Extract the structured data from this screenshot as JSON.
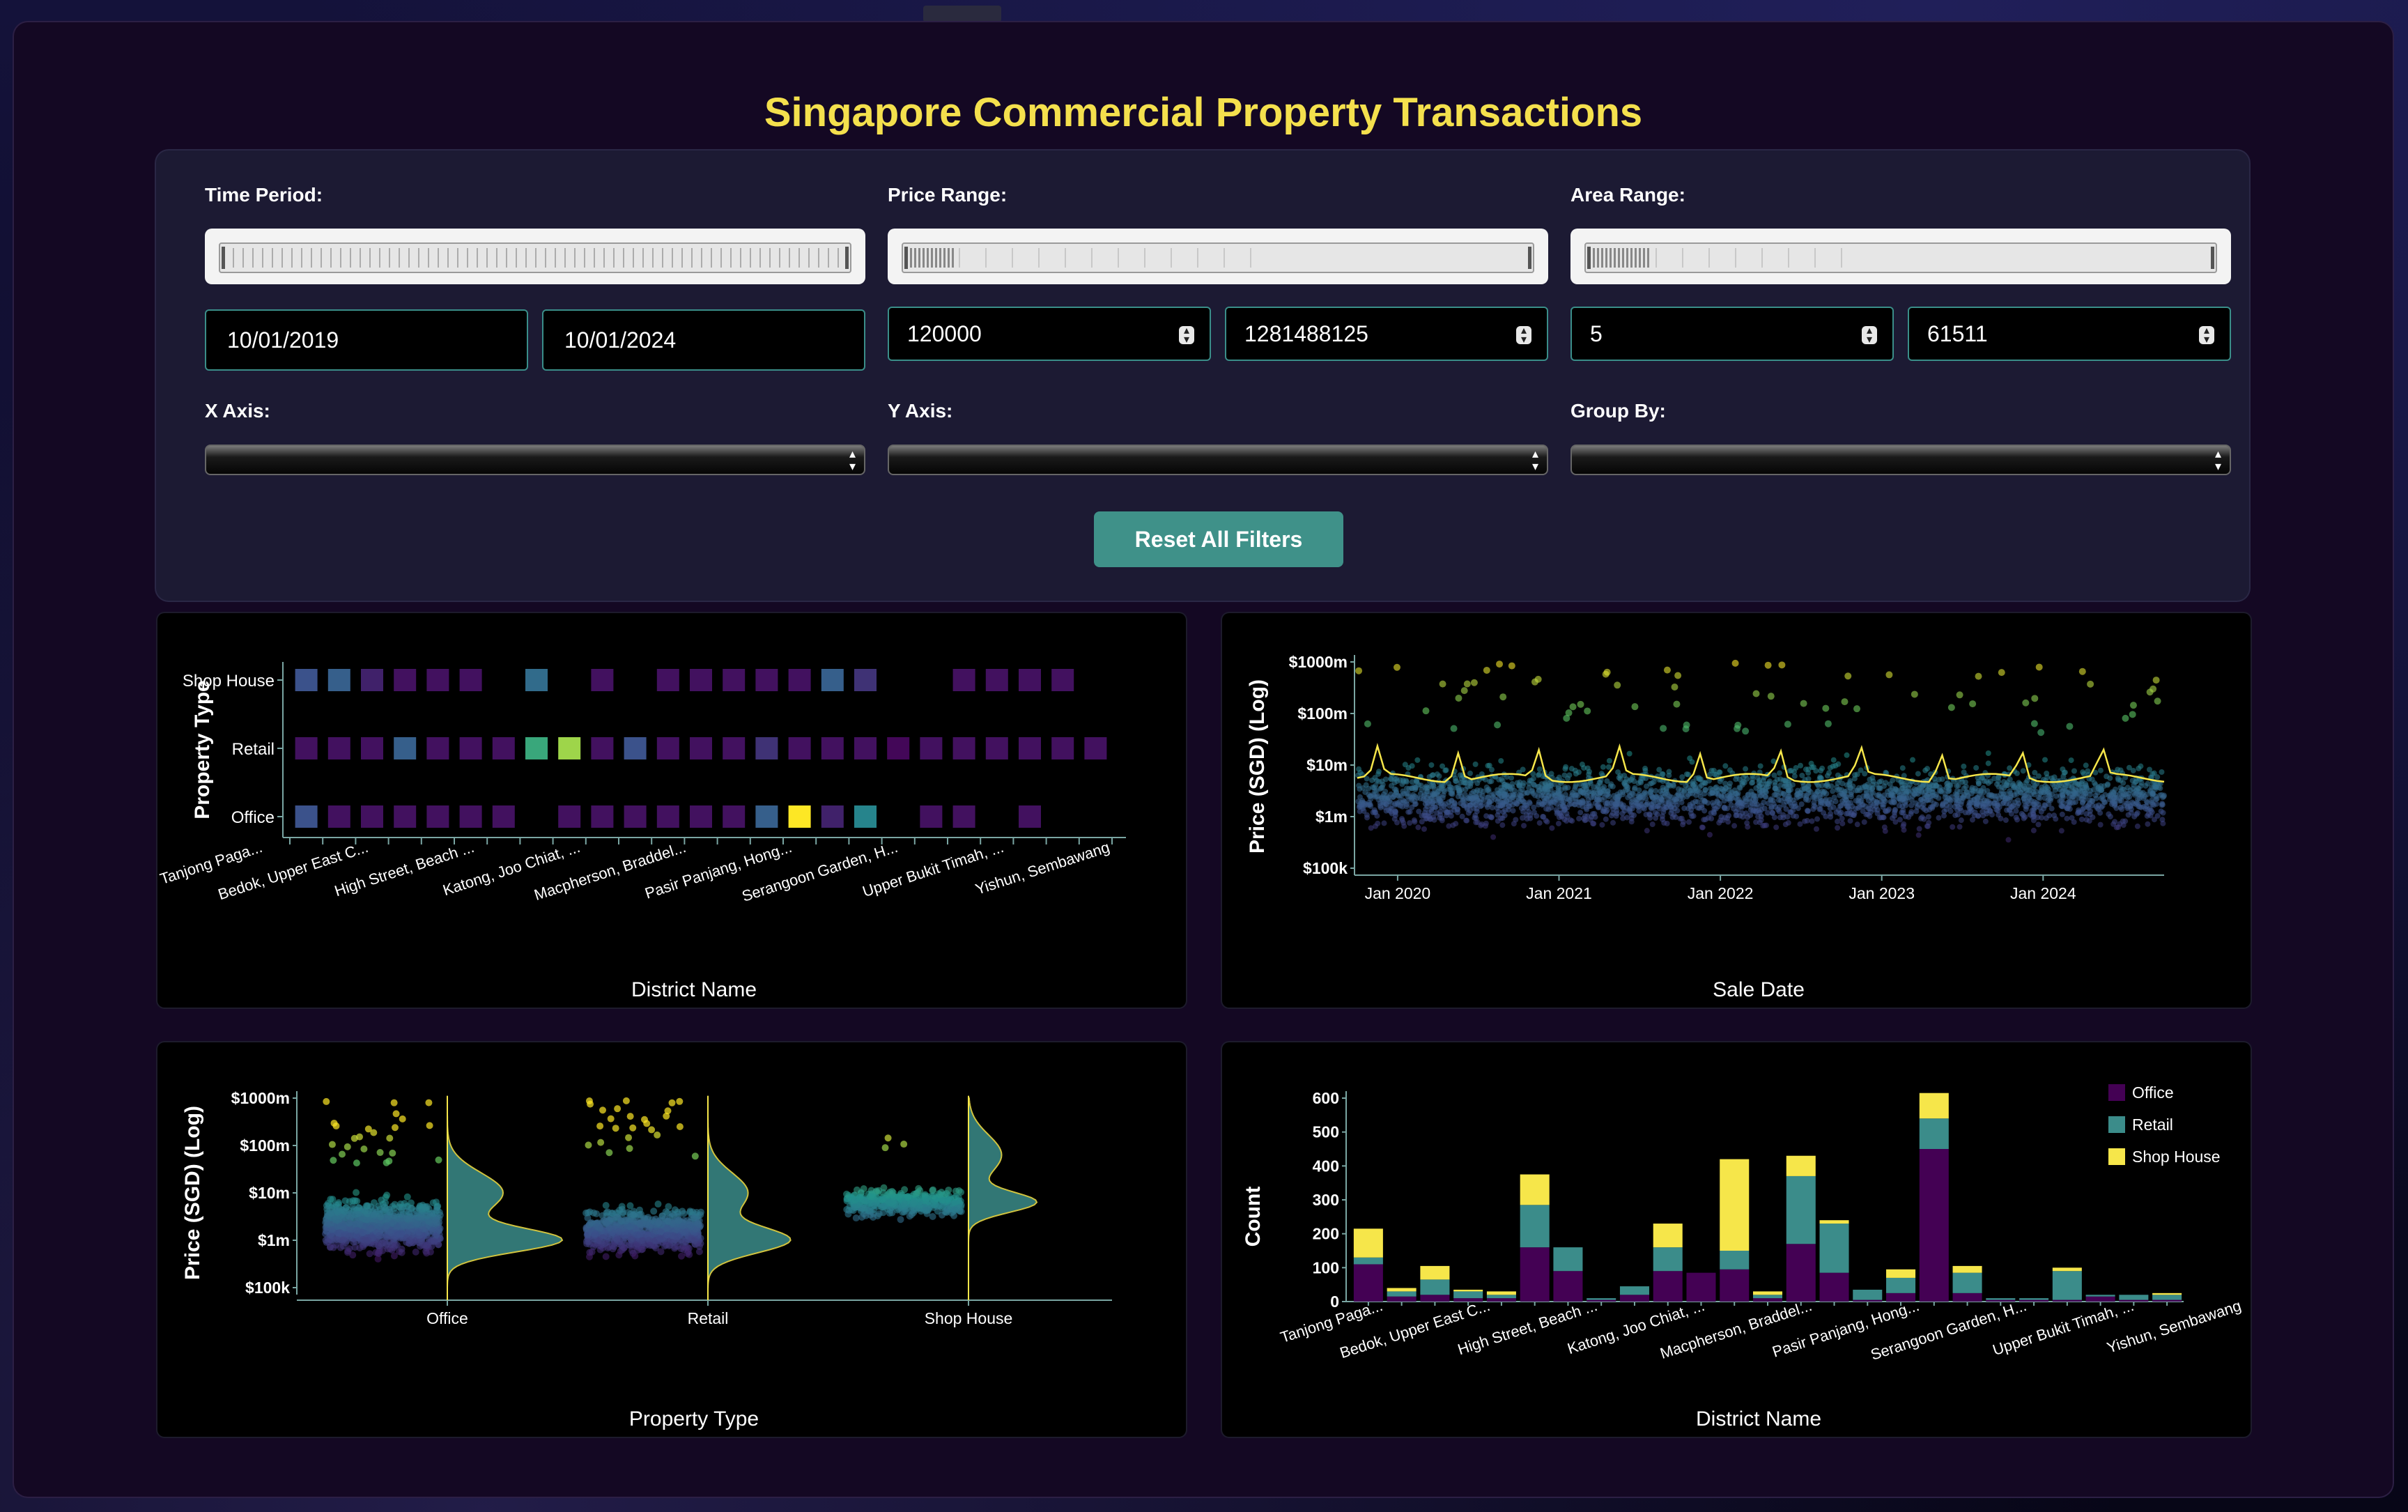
{
  "title": "Singapore Commercial Property Transactions",
  "filters": {
    "time_period": {
      "label": "Time Period:",
      "start": "10/01/2019",
      "end": "10/01/2024"
    },
    "price_range": {
      "label": "Price Range:",
      "min": "120000",
      "max": "1281488125"
    },
    "area_range": {
      "label": "Area Range:",
      "min": "5",
      "max": "61511"
    },
    "x_axis": {
      "label": "X Axis:",
      "value": ""
    },
    "y_axis": {
      "label": "Y Axis:",
      "value": ""
    },
    "group_by": {
      "label": "Group By:",
      "value": ""
    },
    "reset_label": "Reset All Filters"
  },
  "colors": {
    "title": "#f4e04d",
    "button": "#3f9189",
    "office": "#440154",
    "retail": "#3b8c8a",
    "shop_house": "#f6e64a"
  },
  "icons": {
    "select_arrows": "updown-arrows-icon",
    "spinner": "stepper-icon"
  },
  "chart_data": [
    {
      "type": "heatmap",
      "title": "",
      "xlabel": "District Name",
      "ylabel": "Property Type",
      "x_tick_labels": [
        "Tanjong Paga...",
        "Bedok, Upper East C...",
        "High Street, Beach ...",
        "Katong, Joo Chiat, ...",
        "Macpherson, Braddel...",
        "Pasir Panjang, Hong...",
        "Serangoon Garden, H...",
        "Upper Bukit Timah, ...",
        "Yishun, Sembawang"
      ],
      "y_categories": [
        "Office",
        "Retail",
        "Shop House"
      ],
      "n_columns": 25,
      "cells": {
        "Shop House": [
          0.25,
          0.3,
          0.1,
          0.05,
          0.05,
          0.05,
          null,
          0.35,
          null,
          0.05,
          null,
          0.05,
          0.05,
          0.05,
          0.05,
          0.05,
          0.3,
          0.15,
          null,
          null,
          0.05,
          0.05,
          0.05,
          0.05,
          null
        ],
        "Retail": [
          0.05,
          0.05,
          0.05,
          0.3,
          0.05,
          0.05,
          0.05,
          0.6,
          0.85,
          0.05,
          0.25,
          0.05,
          0.05,
          0.05,
          0.15,
          0.05,
          0.05,
          0.05,
          0.02,
          0.05,
          0.05,
          0.05,
          0.05,
          0.05,
          0.05
        ],
        "Office": [
          0.25,
          0.05,
          0.05,
          0.05,
          0.05,
          0.05,
          0.05,
          null,
          0.05,
          0.05,
          0.05,
          0.05,
          0.05,
          0.05,
          0.3,
          1.0,
          0.1,
          0.45,
          null,
          0.05,
          0.05,
          null,
          0.05,
          null,
          null
        ]
      }
    },
    {
      "type": "scatter",
      "title": "",
      "xlabel": "Sale Date",
      "ylabel": "Price (SGD) (Log)",
      "x_tick_labels": [
        "Jan 2020",
        "Jan 2021",
        "Jan 2022",
        "Jan 2023",
        "Jan 2024"
      ],
      "y_tick_labels": [
        "$100k",
        "$1m",
        "$10m",
        "$100m",
        "$1000m"
      ],
      "yscale": "log",
      "ylim": [
        100000,
        1000000000
      ],
      "xlim": [
        "2019-10-01",
        "2024-10-01"
      ],
      "trend_line": "median price, ~$3m–$20m"
    },
    {
      "type": "scatter",
      "title": "",
      "xlabel": "Property Type",
      "ylabel": "Price (SGD) (Log)",
      "categories": [
        "Office",
        "Retail",
        "Shop House"
      ],
      "y_tick_labels": [
        "$100k",
        "$1m",
        "$10m",
        "$100m",
        "$1000m"
      ],
      "yscale": "log",
      "ylim": [
        100000,
        1000000000
      ]
    },
    {
      "type": "bar",
      "title": "",
      "xlabel": "District Name",
      "ylabel": "Count",
      "stacked": true,
      "ylim": [
        0,
        600
      ],
      "y_ticks": [
        0,
        100,
        200,
        300,
        400,
        500,
        600
      ],
      "legend": "top-right",
      "x_tick_labels": [
        "Tanjong Paga...",
        "Bedok, Upper East C...",
        "High Street, Beach ...",
        "Katong, Joo Chiat, ...",
        "Macpherson, Braddel...",
        "Pasir Panjang, Hong...",
        "Serangoon Garden, H...",
        "Upper Bukit Timah, ...",
        "Yishun, Sembawang"
      ],
      "series": [
        {
          "name": "Office",
          "values": [
            110,
            15,
            20,
            10,
            10,
            160,
            90,
            5,
            20,
            90,
            85,
            95,
            10,
            170,
            85,
            5,
            25,
            450,
            25,
            5,
            5,
            5,
            15,
            5,
            5
          ]
        },
        {
          "name": "Retail",
          "values": [
            20,
            15,
            45,
            20,
            10,
            125,
            70,
            5,
            25,
            70,
            0,
            55,
            10,
            200,
            145,
            30,
            45,
            90,
            60,
            5,
            5,
            85,
            5,
            15,
            15
          ]
        },
        {
          "name": "Shop House",
          "values": [
            85,
            10,
            40,
            5,
            10,
            90,
            0,
            0,
            0,
            70,
            0,
            270,
            10,
            60,
            10,
            0,
            25,
            75,
            20,
            0,
            0,
            10,
            0,
            0,
            5
          ]
        }
      ]
    }
  ]
}
